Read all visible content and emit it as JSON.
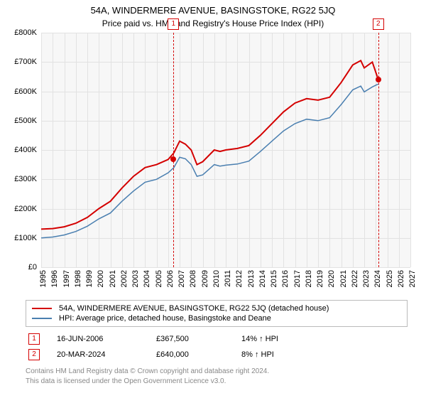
{
  "title": "54A, WINDERMERE AVENUE, BASINGSTOKE, RG22 5JQ",
  "subtitle": "Price paid vs. HM Land Registry's House Price Index (HPI)",
  "chart": {
    "type": "line",
    "background_color": "#f7f7f7",
    "grid_color": "#e2e2e2",
    "x": {
      "min": 1995,
      "max": 2027,
      "ticks": [
        1995,
        1996,
        1997,
        1998,
        1999,
        2000,
        2001,
        2002,
        2003,
        2004,
        2005,
        2006,
        2007,
        2008,
        2009,
        2010,
        2011,
        2012,
        2013,
        2014,
        2015,
        2016,
        2017,
        2018,
        2019,
        2020,
        2021,
        2022,
        2023,
        2024,
        2025,
        2026,
        2027
      ]
    },
    "y": {
      "min": 0,
      "max": 800000,
      "tick_step": 100000,
      "labels": [
        "£0",
        "£100K",
        "£200K",
        "£300K",
        "£400K",
        "£500K",
        "£600K",
        "£700K",
        "£800K"
      ]
    },
    "series": [
      {
        "name": "property",
        "label": "54A, WINDERMERE AVENUE, BASINGSTOKE, RG22 5JQ (detached house)",
        "color": "#d40000",
        "line_width": 2,
        "data": [
          [
            1995,
            130000
          ],
          [
            1996,
            132000
          ],
          [
            1997,
            138000
          ],
          [
            1998,
            150000
          ],
          [
            1999,
            170000
          ],
          [
            2000,
            200000
          ],
          [
            2001,
            225000
          ],
          [
            2002,
            270000
          ],
          [
            2003,
            310000
          ],
          [
            2004,
            340000
          ],
          [
            2005,
            350000
          ],
          [
            2006,
            367500
          ],
          [
            2006.5,
            390000
          ],
          [
            2007,
            430000
          ],
          [
            2007.5,
            420000
          ],
          [
            2008,
            400000
          ],
          [
            2008.5,
            350000
          ],
          [
            2009,
            360000
          ],
          [
            2010,
            400000
          ],
          [
            2010.5,
            395000
          ],
          [
            2011,
            400000
          ],
          [
            2012,
            405000
          ],
          [
            2013,
            415000
          ],
          [
            2014,
            450000
          ],
          [
            2015,
            490000
          ],
          [
            2016,
            530000
          ],
          [
            2017,
            560000
          ],
          [
            2018,
            575000
          ],
          [
            2019,
            570000
          ],
          [
            2020,
            580000
          ],
          [
            2021,
            630000
          ],
          [
            2022,
            690000
          ],
          [
            2022.7,
            705000
          ],
          [
            2023,
            680000
          ],
          [
            2023.7,
            700000
          ],
          [
            2024.22,
            640000
          ]
        ]
      },
      {
        "name": "hpi",
        "label": "HPI: Average price, detached house, Basingstoke and Deane",
        "color": "#4a7fb0",
        "line_width": 1.5,
        "data": [
          [
            1995,
            100000
          ],
          [
            1996,
            103000
          ],
          [
            1997,
            110000
          ],
          [
            1998,
            122000
          ],
          [
            1999,
            140000
          ],
          [
            2000,
            165000
          ],
          [
            2001,
            185000
          ],
          [
            2002,
            225000
          ],
          [
            2003,
            260000
          ],
          [
            2004,
            290000
          ],
          [
            2005,
            300000
          ],
          [
            2006,
            322000
          ],
          [
            2006.5,
            340000
          ],
          [
            2007,
            375000
          ],
          [
            2007.5,
            370000
          ],
          [
            2008,
            350000
          ],
          [
            2008.5,
            310000
          ],
          [
            2009,
            315000
          ],
          [
            2010,
            350000
          ],
          [
            2010.5,
            345000
          ],
          [
            2011,
            348000
          ],
          [
            2012,
            352000
          ],
          [
            2013,
            362000
          ],
          [
            2014,
            395000
          ],
          [
            2015,
            430000
          ],
          [
            2016,
            465000
          ],
          [
            2017,
            490000
          ],
          [
            2018,
            505000
          ],
          [
            2019,
            500000
          ],
          [
            2020,
            510000
          ],
          [
            2021,
            555000
          ],
          [
            2022,
            605000
          ],
          [
            2022.7,
            618000
          ],
          [
            2023,
            598000
          ],
          [
            2023.7,
            615000
          ],
          [
            2024.22,
            625000
          ]
        ]
      }
    ],
    "event_markers": [
      {
        "n": "1",
        "year": 2006.46,
        "color": "#d40000",
        "box_y": -20
      },
      {
        "n": "2",
        "year": 2024.22,
        "color": "#d40000",
        "box_y": -20
      }
    ],
    "sale_points": [
      {
        "year": 2006.46,
        "value": 367500,
        "color": "#d40000"
      },
      {
        "year": 2024.22,
        "value": 640000,
        "color": "#d40000"
      }
    ]
  },
  "legend": {
    "items": [
      {
        "color": "#d40000",
        "label": "54A, WINDERMERE AVENUE, BASINGSTOKE, RG22 5JQ (detached house)"
      },
      {
        "color": "#4a7fb0",
        "label": "HPI: Average price, detached house, Basingstoke and Deane"
      }
    ]
  },
  "events": [
    {
      "n": "1",
      "color": "#d40000",
      "date": "16-JUN-2006",
      "price": "£367,500",
      "hpi": "14% ↑ HPI"
    },
    {
      "n": "2",
      "color": "#d40000",
      "date": "20-MAR-2024",
      "price": "£640,000",
      "hpi": "8% ↑ HPI"
    }
  ],
  "footer": {
    "line1": "Contains HM Land Registry data © Crown copyright and database right 2024.",
    "line2": "This data is licensed under the Open Government Licence v3.0."
  }
}
